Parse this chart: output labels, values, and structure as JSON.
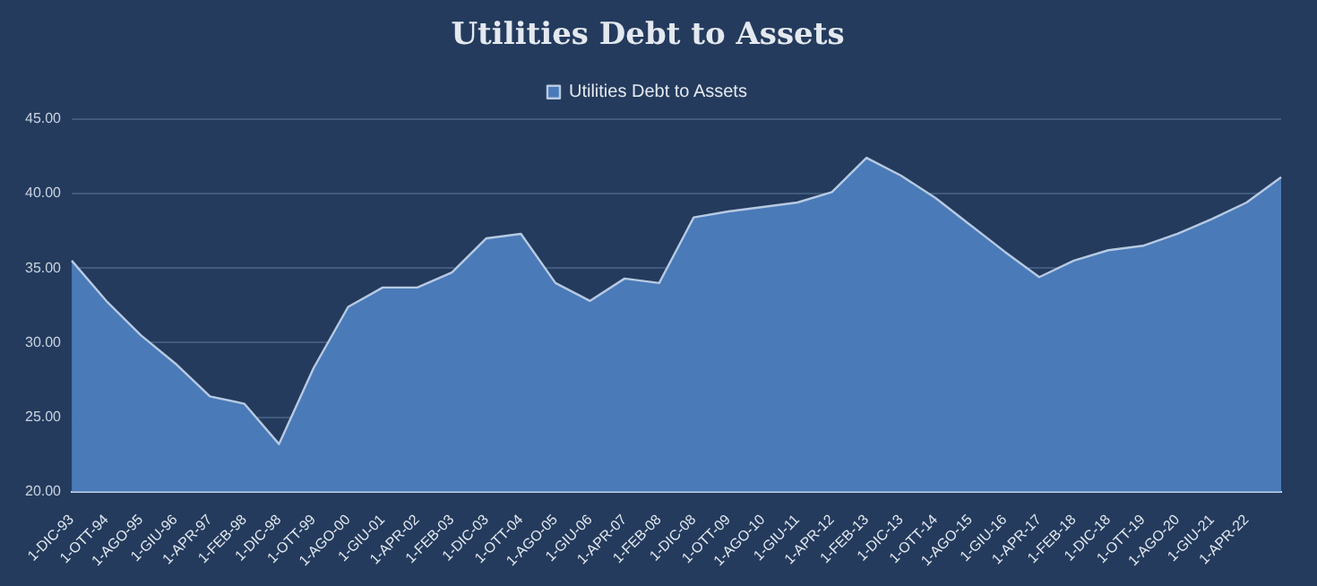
{
  "chart_data": {
    "type": "area",
    "title": "Utilities Debt to Assets",
    "categories": [
      "1-DIC-93",
      "1-OTT-94",
      "1-AGO-95",
      "1-GIU-96",
      "1-APR-97",
      "1-FEB-98",
      "1-DIC-98",
      "1-OTT-99",
      "1-AGO-00",
      "1-GIU-01",
      "1-APR-02",
      "1-FEB-03",
      "1-DIC-03",
      "1-OTT-04",
      "1-AGO-05",
      "1-GIU-06",
      "1-APR-07",
      "1-FEB-08",
      "1-DIC-08",
      "1-OTT-09",
      "1-AGO-10",
      "1-GIU-11",
      "1-APR-12",
      "1-FEB-13",
      "1-DIC-13",
      "1-OTT-14",
      "1-AGO-15",
      "1-GIU-16",
      "1-APR-17",
      "1-FEB-18",
      "1-DIC-18",
      "1-OTT-19",
      "1-AGO-20",
      "1-GIU-21",
      "1-APR-22",
      null
    ],
    "series": [
      {
        "name": "Utilities Debt to Assets",
        "color": "#4a7ab8",
        "values": [
          35.5,
          32.8,
          30.5,
          28.6,
          26.4,
          25.9,
          23.2,
          28.3,
          32.4,
          33.7,
          33.7,
          34.7,
          37.0,
          37.3,
          34.0,
          32.8,
          34.3,
          34.0,
          38.4,
          38.8,
          39.1,
          39.4,
          40.1,
          42.4,
          41.2,
          39.7,
          37.9,
          36.1,
          34.4,
          35.5,
          36.2,
          36.5,
          37.3,
          38.3,
          39.4,
          41.1
        ]
      }
    ],
    "ylim": [
      20,
      45
    ],
    "yticks": [
      {
        "value": 20,
        "label": "20.00"
      },
      {
        "value": 25,
        "label": "25.00"
      },
      {
        "value": 30,
        "label": "30.00"
      },
      {
        "value": 35,
        "label": "35.00"
      },
      {
        "value": 40,
        "label": "40.00"
      },
      {
        "value": 45,
        "label": "45.00"
      }
    ],
    "grid": "y",
    "legend": "top"
  }
}
